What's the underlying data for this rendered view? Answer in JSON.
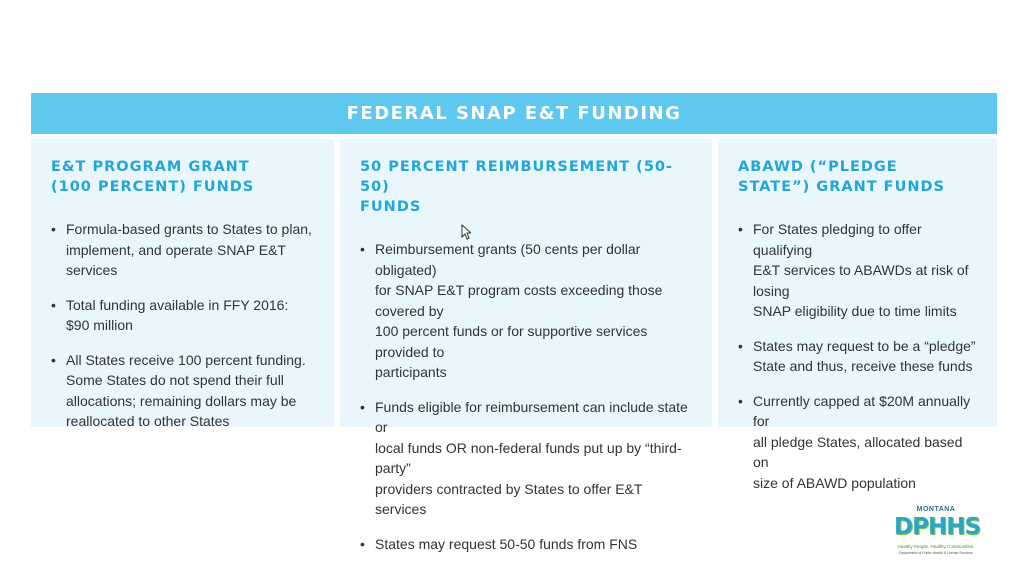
{
  "banner": {
    "title": "FEDERAL SNAP E&T FUNDING"
  },
  "columns": [
    {
      "heading_lines": [
        "E&T PROGRAM GRANT",
        "(100 PERCENT) FUNDS"
      ],
      "bullets": [
        [
          "Formula-based grants to States to plan,",
          "implement, and operate SNAP E&T services"
        ],
        [
          "Total funding available in FFY 2016:",
          "$90 million"
        ],
        [
          "All States receive 100 percent funding.",
          "Some States do not spend their full",
          "allocations; remaining dollars may be",
          "reallocated to other States"
        ]
      ]
    },
    {
      "heading_lines": [
        "50 PERCENT REIMBURSEMENT (50-50)",
        "FUNDS"
      ],
      "bullets": [
        [
          "Reimbursement grants (50 cents per dollar obligated)",
          "for SNAP E&T program costs exceeding those covered  by",
          "100 percent funds or for supportive services provided to",
          "participants"
        ],
        [
          "Funds eligible for reimbursement can include state or",
          "local funds OR non-federal funds put up by “third-party”",
          "providers contracted by States to offer E&T services"
        ],
        [
          "States may request 50-50 funds from FNS"
        ]
      ]
    },
    {
      "heading_lines": [
        "ABAWD (“PLEDGE",
        "STATE”) GRANT FUNDS"
      ],
      "bullets": [
        [
          "For States pledging to offer qualifying",
          "E&T services to ABAWDs at risk of losing",
          "SNAP eligibility due to time limits"
        ],
        [
          "States may request to be a “pledge”",
          "State and thus, receive these funds"
        ],
        [
          "Currently capped at $20M annually for",
          "all pledge States, allocated  based on",
          "size of ABAWD population"
        ]
      ]
    }
  ],
  "logo": {
    "state": "MONTANA",
    "name": "DPHHS",
    "tagline": "Healthy People. Healthy Communities.",
    "department": "Department of Public Health & Human Services"
  }
}
